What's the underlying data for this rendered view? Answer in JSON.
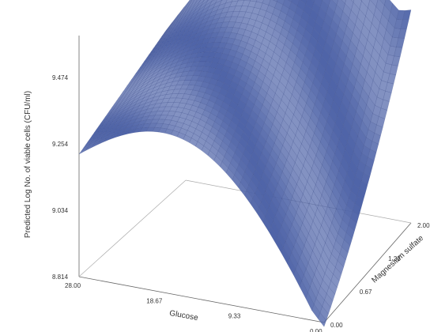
{
  "chart_data": {
    "type": "surface",
    "title": "",
    "zlabel": "Predicted Log No. of viable cells (CFU/ml)",
    "xlabel": "Glucose",
    "ylabel": "Magnesium sulfate",
    "z_ticks": [
      "8.814",
      "9.034",
      "9.254",
      "9.474"
    ],
    "x_ticks": [
      "28.00",
      "18.67",
      "9.33",
      "0.00"
    ],
    "y_ticks": [
      "0.00",
      "0.67",
      "1.33",
      "2.00"
    ],
    "zlim": [
      8.814,
      9.6
    ],
    "xlim": [
      0,
      28
    ],
    "ylim": [
      0,
      2
    ],
    "surface_samples": [
      {
        "glucose": 28.0,
        "magnesium_sulfate": 0.0,
        "z": 9.22
      },
      {
        "glucose": 28.0,
        "magnesium_sulfate": 2.0,
        "z": 9.3
      },
      {
        "glucose": 14.0,
        "magnesium_sulfate": 1.0,
        "z": 9.45
      },
      {
        "glucose": 5.0,
        "magnesium_sulfate": 1.8,
        "z": 9.62
      },
      {
        "glucose": 0.0,
        "magnesium_sulfate": 0.0,
        "z": 8.82
      },
      {
        "glucose": 0.0,
        "magnesium_sulfate": 2.0,
        "z": 9.3
      }
    ],
    "colors": {
      "surface": "#4f64a8",
      "mesh": "#2f3f80",
      "axes": "#666666"
    }
  }
}
